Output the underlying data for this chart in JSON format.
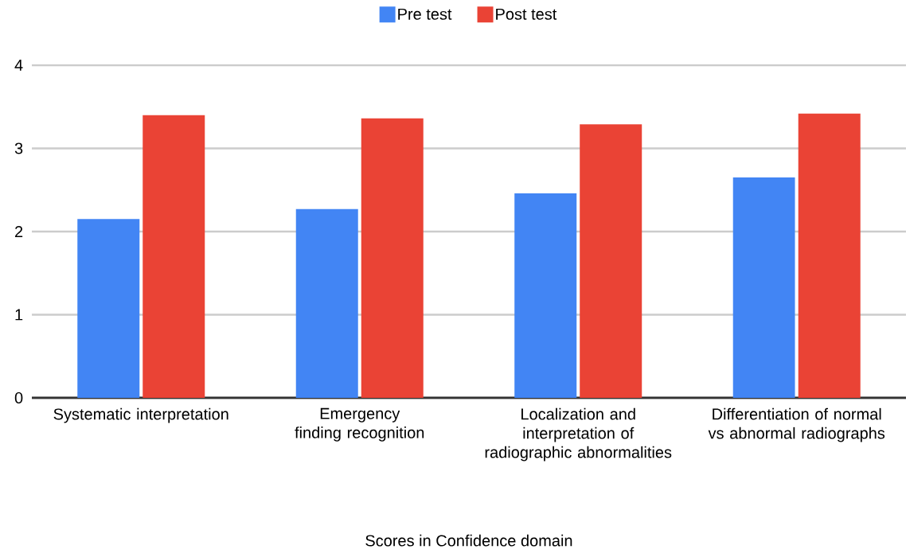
{
  "chart_data": {
    "type": "bar",
    "xlabel": "Scores in Confidence domain",
    "categories": [
      "Systematic interpretation",
      "Emergency finding recognition",
      "Localization and interpretation of radiographic abnormalities",
      "Differentiation of normal vs abnormal radiographs"
    ],
    "series": [
      {
        "name": "Pre test",
        "color": "#4285f4",
        "values": [
          2.15,
          2.27,
          2.46,
          2.65
        ]
      },
      {
        "name": "Post test",
        "color": "#ea4335",
        "values": [
          3.4,
          3.36,
          3.29,
          3.42
        ]
      }
    ],
    "ylim": [
      0,
      4
    ],
    "yticks": [
      0,
      1,
      2,
      3,
      4
    ],
    "grid": "y",
    "legend": "top"
  }
}
